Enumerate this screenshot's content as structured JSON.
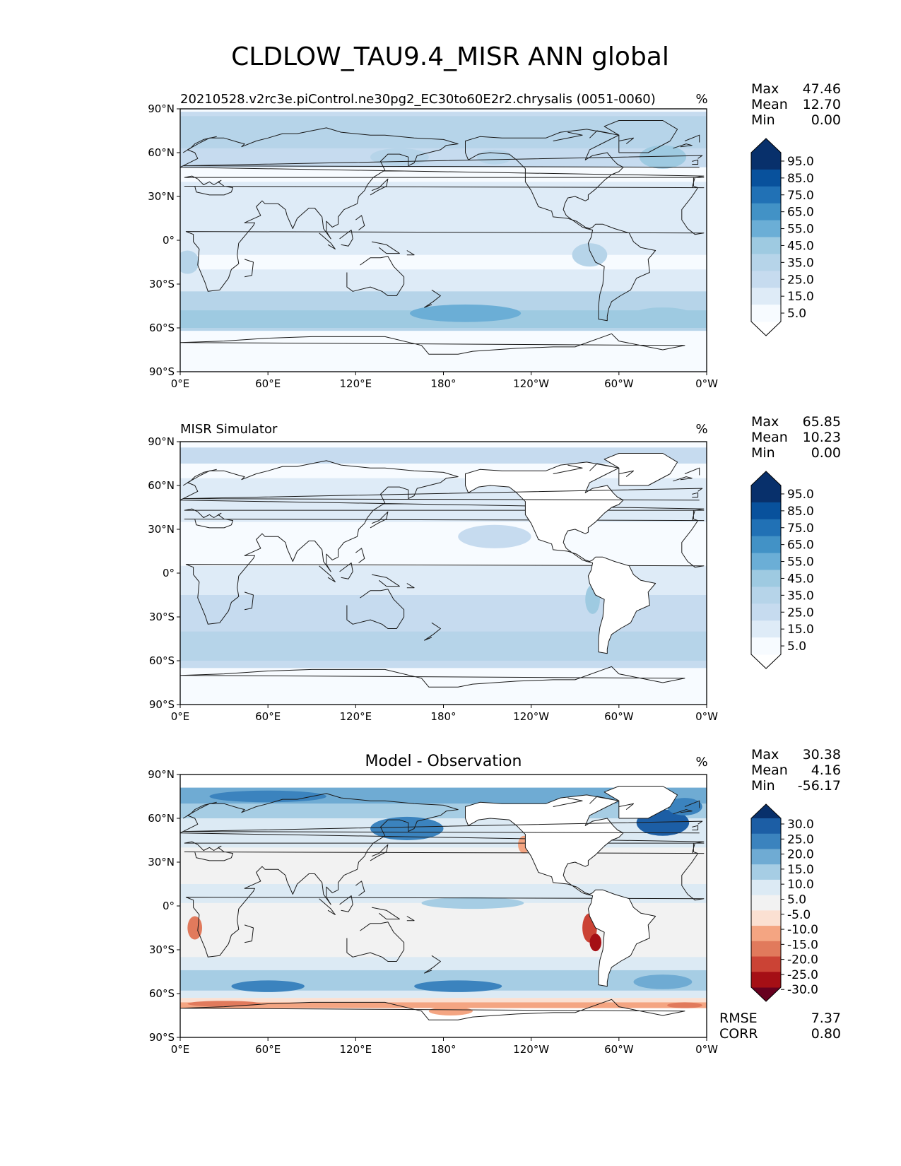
{
  "title": "CLDLOW_TAU9.4_MISR ANN global",
  "stat_labels": {
    "max": "Max",
    "mean": "Mean",
    "min": "Min",
    "rmse": "RMSE",
    "corr": "CORR"
  },
  "colors": {
    "seq": [
      "#f7fbff",
      "#deebf7",
      "#c6dbef",
      "#b6d4e9",
      "#9ecae1",
      "#6baed6",
      "#4292c6",
      "#2171b5",
      "#08519c",
      "#08306b"
    ],
    "seq_under": "#ffffff",
    "div": [
      "#67001f",
      "#a50f15",
      "#cb4335",
      "#e17a5c",
      "#f4a582",
      "#fbe0d2",
      "#f2f2f2",
      "#dceaf4",
      "#a6cde4",
      "#6fabd3",
      "#3b83be",
      "#1c5ea5",
      "#08306b"
    ]
  },
  "panels": [
    {
      "id": "model",
      "title": "20210528.v2rc3e.piControl.ne30pg2_EC30to60E2r2.chrysalis (0051-0060)",
      "units": "%",
      "stats": {
        "max": "47.46",
        "mean": "12.70",
        "min": "0.00"
      },
      "colorbar": {
        "ticks": [
          "95.0",
          "85.0",
          "75.0",
          "65.0",
          "55.0",
          "45.0",
          "35.0",
          "25.0",
          "15.0",
          "5.0"
        ]
      }
    },
    {
      "id": "obs",
      "title": "MISR Simulator",
      "units": "%",
      "stats": {
        "max": "65.85",
        "mean": "10.23",
        "min": "0.00"
      },
      "colorbar": {
        "ticks": [
          "95.0",
          "85.0",
          "75.0",
          "65.0",
          "55.0",
          "45.0",
          "35.0",
          "25.0",
          "15.0",
          "5.0"
        ]
      }
    },
    {
      "id": "diff",
      "title": "Model - Observation",
      "units": "%",
      "stats": {
        "max": "30.38",
        "mean": "4.16",
        "min": "-56.17"
      },
      "rmse": "7.37",
      "corr": "0.80",
      "colorbar": {
        "ticks": [
          "30.0",
          "25.0",
          "20.0",
          "15.0",
          "10.0",
          "5.0",
          "-5.0",
          "-10.0",
          "-15.0",
          "-20.0",
          "-25.0",
          "-30.0"
        ]
      }
    }
  ],
  "chart_data": [
    {
      "type": "heatmap",
      "title": "20210528.v2rc3e.piControl.ne30pg2_EC30to60E2r2.chrysalis (0051-0060)",
      "units": "%",
      "xlabels": [
        "0°E",
        "60°E",
        "120°E",
        "180°",
        "120°W",
        "60°W",
        "0°W"
      ],
      "ylabels": [
        "90°N",
        "60°N",
        "30°N",
        "0°",
        "30°S",
        "60°S",
        "90°S"
      ],
      "xlim": [
        0,
        360
      ],
      "ylim": [
        -90,
        90
      ],
      "levels": [
        5,
        15,
        25,
        35,
        45,
        55,
        65,
        75,
        85,
        95
      ],
      "zonal_mean_profile": {
        "lat": [
          90,
          80,
          70,
          60,
          50,
          40,
          30,
          20,
          10,
          0,
          -10,
          -20,
          -30,
          -40,
          -50,
          -60,
          -70,
          -80,
          -90
        ],
        "value": [
          5,
          20,
          28,
          22,
          25,
          16,
          10,
          12,
          8,
          10,
          12,
          10,
          12,
          22,
          28,
          30,
          6,
          2,
          2
        ]
      },
      "stats": {
        "max": 47.46,
        "mean": 12.7,
        "min": 0.0
      }
    },
    {
      "type": "heatmap",
      "title": "MISR Simulator",
      "units": "%",
      "xlabels": [
        "0°E",
        "60°E",
        "120°E",
        "180°",
        "120°W",
        "60°W",
        "0°W"
      ],
      "ylabels": [
        "90°N",
        "60°N",
        "30°N",
        "0°",
        "30°S",
        "60°S",
        "90°S"
      ],
      "xlim": [
        0,
        360
      ],
      "ylim": [
        -90,
        90
      ],
      "levels": [
        5,
        15,
        25,
        35,
        45,
        55,
        65,
        75,
        85,
        95
      ],
      "zonal_mean_profile": {
        "lat": [
          90,
          80,
          70,
          60,
          50,
          40,
          30,
          20,
          10,
          0,
          -10,
          -20,
          -30,
          -40,
          -50,
          -60,
          -70,
          -80,
          -90
        ],
        "value": [
          0,
          12,
          10,
          10,
          14,
          8,
          6,
          8,
          4,
          8,
          12,
          14,
          14,
          16,
          18,
          18,
          2,
          0,
          0
        ]
      },
      "stats": {
        "max": 65.85,
        "mean": 10.23,
        "min": 0.0
      }
    },
    {
      "type": "heatmap",
      "title": "Model - Observation",
      "units": "%",
      "xlabels": [
        "0°E",
        "60°E",
        "120°E",
        "180°",
        "120°W",
        "60°W",
        "0°W"
      ],
      "ylabels": [
        "90°N",
        "60°N",
        "30°N",
        "0°",
        "30°S",
        "60°S",
        "90°S"
      ],
      "xlim": [
        0,
        360
      ],
      "ylim": [
        -90,
        90
      ],
      "levels": [
        -30,
        -25,
        -20,
        -15,
        -10,
        -5,
        5,
        10,
        15,
        20,
        25,
        30
      ],
      "zonal_mean_profile": {
        "lat": [
          90,
          80,
          70,
          60,
          50,
          40,
          30,
          20,
          10,
          0,
          -10,
          -20,
          -30,
          -40,
          -50,
          -60,
          -70,
          -80,
          -90
        ],
        "value": [
          0,
          20,
          14,
          12,
          14,
          8,
          2,
          2,
          4,
          4,
          2,
          -2,
          0,
          6,
          12,
          14,
          -8,
          0,
          0
        ]
      },
      "stats": {
        "max": 30.38,
        "mean": 4.16,
        "min": -56.17
      },
      "rmse": 7.37,
      "corr": 0.8
    }
  ]
}
